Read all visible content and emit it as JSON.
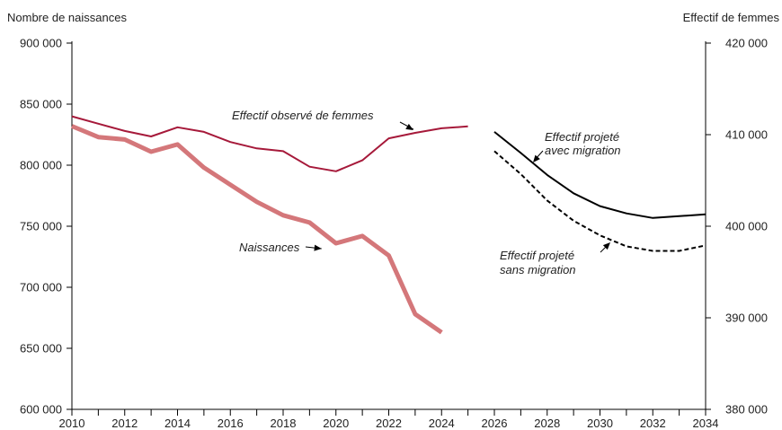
{
  "chart_data": {
    "type": "line",
    "left_axis": {
      "label": "Nombre de naissances",
      "ylim": [
        600000,
        900000
      ],
      "ticks": [
        600000,
        650000,
        700000,
        750000,
        800000,
        850000,
        900000
      ],
      "tick_labels": [
        "600 000",
        "650 000",
        "700 000",
        "750 000",
        "800 000",
        "850 000",
        "900 000"
      ]
    },
    "right_axis": {
      "label": "Effectif de femmes",
      "ylim": [
        380000,
        420000
      ],
      "ticks": [
        380000,
        390000,
        400000,
        410000,
        420000
      ],
      "tick_labels": [
        "380 000",
        "390 000",
        "400 000",
        "410 000",
        "420 000"
      ]
    },
    "x_axis": {
      "xlim": [
        2010,
        2034
      ],
      "tick_labels": [
        "2010",
        "2012",
        "2014",
        "2016",
        "2018",
        "2020",
        "2022",
        "2024",
        "2026",
        "2028",
        "2030",
        "2032",
        "2034"
      ]
    },
    "series": [
      {
        "name": "Naissances",
        "axis": "left",
        "color": "#d4777a",
        "style": "thick",
        "x": [
          2010,
          2011,
          2012,
          2013,
          2014,
          2015,
          2016,
          2017,
          2018,
          2019,
          2020,
          2021,
          2022,
          2023,
          2024
        ],
        "values": [
          832000,
          823000,
          821000,
          811000,
          817000,
          798000,
          784000,
          770000,
          759000,
          753000,
          736000,
          742000,
          726000,
          678000,
          663000
        ]
      },
      {
        "name": "Effectif observé de femmes",
        "axis": "right",
        "color": "#a6193a",
        "style": "solid",
        "x": [
          2010,
          2011,
          2012,
          2013,
          2014,
          2015,
          2016,
          2017,
          2018,
          2019,
          2020,
          2021,
          2022,
          2023,
          2024,
          2025
        ],
        "values": [
          412000,
          411200,
          410400,
          409800,
          410800,
          410300,
          409200,
          408500,
          408200,
          406500,
          406000,
          407200,
          409600,
          410200,
          410700,
          410900
        ]
      },
      {
        "name": "Effectif projeté avec migration",
        "axis": "right",
        "color": "#000000",
        "style": "solid",
        "x": [
          2026,
          2027,
          2028,
          2029,
          2030,
          2031,
          2032,
          2033,
          2034
        ],
        "values": [
          410300,
          408000,
          405600,
          403600,
          402200,
          401400,
          400900,
          401100,
          401300
        ]
      },
      {
        "name": "Effectif projeté sans migration",
        "axis": "right",
        "color": "#000000",
        "style": "dashed",
        "x": [
          2026,
          2027,
          2028,
          2029,
          2030,
          2031,
          2032,
          2033,
          2034
        ],
        "values": [
          408200,
          405700,
          402800,
          400600,
          399000,
          397800,
          397300,
          397300,
          397900
        ]
      }
    ],
    "annotations": [
      {
        "text": "Effectif observé de femmes",
        "series": 1
      },
      {
        "text": "Naissances",
        "series": 0
      },
      {
        "text": "Effectif projeté",
        "text2": "avec migration",
        "series": 2
      },
      {
        "text": "Effectif projeté",
        "text2": "sans migration",
        "series": 3
      }
    ]
  }
}
